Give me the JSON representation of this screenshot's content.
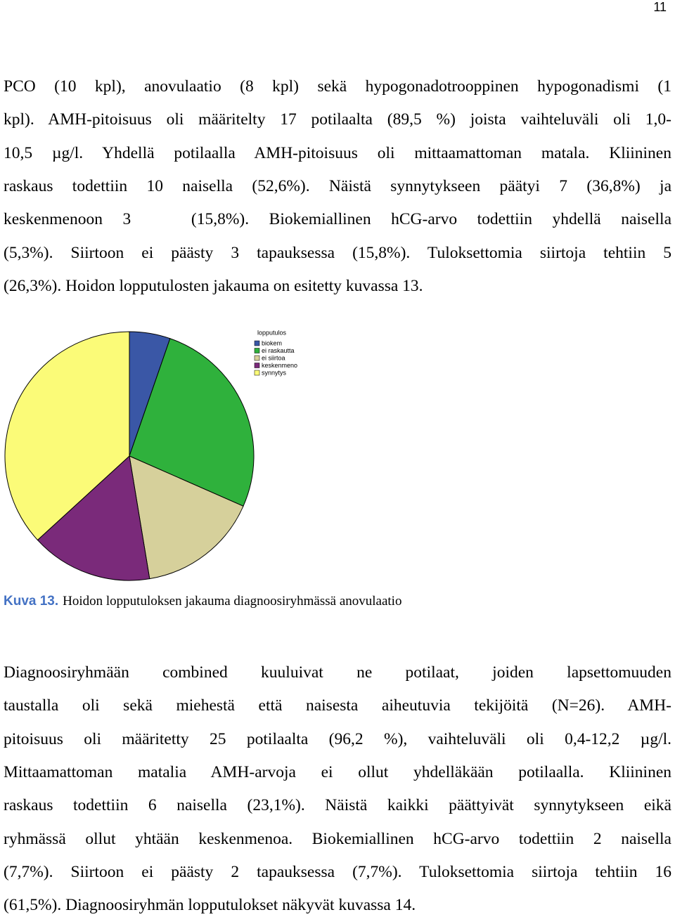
{
  "page_number": "11",
  "paragraphs": [
    {
      "lines": [
        "PCO (10 kpl), anovulaatio (8 kpl) sekä hypogonadotrooppinen hypogonadismi (1",
        "kpl). AMH-pitoisuus oli määritelty 17 potilaalta (89,5 %) joista vaihteluväli oli 1,0-",
        "10,5 µg/l. Yhdellä potilaalla AMH-pitoisuus oli mittaamattoman matala. Kliininen",
        "raskaus todettiin 10 naisella (52,6%). Näistä synnytykseen päätyi 7 (36,8%) ja",
        "keskenmenoon 3   (15,8%). Biokemiallinen hCG-arvo todettiin yhdellä naisella",
        "(5,3%). Siirtoon ei päästy 3 tapauksessa (15,8%). Tuloksettomia siirtoja tehtiin 5",
        "(26,3%). Hoidon lopputulosten jakauma on esitetty kuvassa 13."
      ]
    },
    {
      "lines": [
        "Diagnoosiryhmään combined kuuluivat ne potilaat, joiden lapsettomuuden",
        "taustalla oli sekä miehestä että naisesta aiheutuvia tekijöitä (N=26). AMH-",
        "pitoisuus oli määritetty 25 potilaalta (96,2 %), vaihteluväli oli 0,4-12,2 µg/l.",
        "Mittaamattoman matalia AMH-arvoja ei ollut yhdelläkään potilaalla. Kliininen",
        "raskaus todettiin 6 naisella (23,1%). Näistä kaikki päättyivät synnytykseen eikä",
        "ryhmässä ollut yhtään keskenmenoa. Biokemiallinen hCG-arvo todettiin 2 naisella",
        "(7,7%). Siirtoon ei päästy 2 tapauksessa (7,7%). Tuloksettomia siirtoja tehtiin 16",
        "(61,5%). Diagnoosiryhmän lopputulokset näkyvät kuvassa 14."
      ]
    }
  ],
  "chart_data": {
    "type": "pie",
    "title": "lopputulos",
    "categories": [
      "biokem",
      "ei raskautta",
      "ei siirtoa",
      "keskenmeno",
      "synnytys"
    ],
    "values": [
      5.3,
      26.3,
      15.8,
      15.8,
      36.8
    ],
    "colors": [
      "#3a57a6",
      "#2fb13c",
      "#d6d09b",
      "#7a2a7a",
      "#fbfb78"
    ]
  },
  "caption": {
    "label": "Kuva 13.",
    "text": "Hoidon lopputuloksen jakauma diagnoosiryhmässä anovulaatio"
  }
}
